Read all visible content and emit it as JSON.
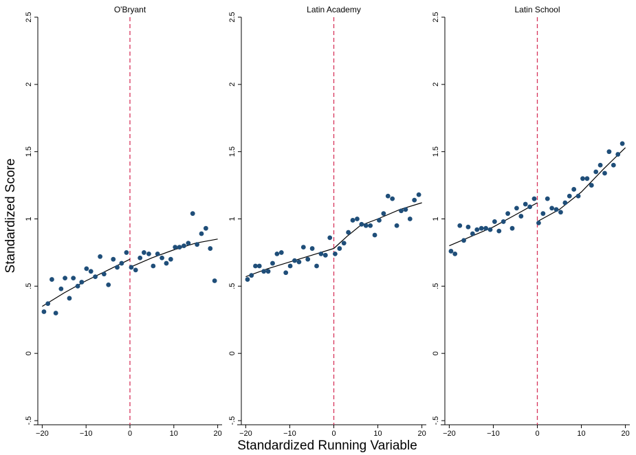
{
  "figure": {
    "ylabel": "Standardized Score",
    "xlabel": "Standardized Running Variable",
    "colors": {
      "points": "#1f4e79",
      "line": "#000000",
      "cutoff": "#d6335a"
    }
  },
  "chart_data": [
    {
      "type": "scatter",
      "title": "O'Bryant",
      "xlim": [
        -21,
        21
      ],
      "ylim": [
        -0.5,
        2.5
      ],
      "xticks": [
        "-20",
        "-10",
        "0",
        "10",
        "20"
      ],
      "yticks": [
        "-.5",
        "0",
        ".5",
        "1",
        "1.5",
        "2",
        "2.5"
      ],
      "cutoff": 0,
      "points": [
        [
          -19.6,
          0.31
        ],
        [
          -18.7,
          0.37
        ],
        [
          -17.8,
          0.55
        ],
        [
          -16.9,
          0.3
        ],
        [
          -15.7,
          0.48
        ],
        [
          -14.8,
          0.56
        ],
        [
          -13.8,
          0.41
        ],
        [
          -12.9,
          0.56
        ],
        [
          -11.9,
          0.5
        ],
        [
          -11.0,
          0.53
        ],
        [
          -9.9,
          0.63
        ],
        [
          -8.9,
          0.61
        ],
        [
          -7.9,
          0.57
        ],
        [
          -6.8,
          0.72
        ],
        [
          -5.9,
          0.59
        ],
        [
          -4.9,
          0.51
        ],
        [
          -3.8,
          0.7
        ],
        [
          -2.9,
          0.64
        ],
        [
          -1.9,
          0.67
        ],
        [
          -0.8,
          0.75
        ],
        [
          0.3,
          0.64
        ],
        [
          1.3,
          0.62
        ],
        [
          2.3,
          0.71
        ],
        [
          3.2,
          0.75
        ],
        [
          4.3,
          0.74
        ],
        [
          5.3,
          0.65
        ],
        [
          6.3,
          0.74
        ],
        [
          7.3,
          0.71
        ],
        [
          8.3,
          0.67
        ],
        [
          9.3,
          0.7
        ],
        [
          10.3,
          0.79
        ],
        [
          11.3,
          0.79
        ],
        [
          12.3,
          0.8
        ],
        [
          13.3,
          0.82
        ],
        [
          14.3,
          1.04
        ],
        [
          15.3,
          0.81
        ],
        [
          16.3,
          0.89
        ],
        [
          17.3,
          0.93
        ],
        [
          18.3,
          0.78
        ],
        [
          19.3,
          0.54
        ]
      ],
      "fit_left": [
        [
          -20,
          0.35
        ],
        [
          -15,
          0.45
        ],
        [
          -10,
          0.54
        ],
        [
          -5,
          0.62
        ],
        [
          0,
          0.7
        ]
      ],
      "fit_right": [
        [
          0,
          0.64
        ],
        [
          5,
          0.71
        ],
        [
          10,
          0.77
        ],
        [
          15,
          0.82
        ],
        [
          20,
          0.85
        ]
      ]
    },
    {
      "type": "scatter",
      "title": "Latin Academy",
      "xlim": [
        -21,
        21
      ],
      "ylim": [
        -0.5,
        2.5
      ],
      "xticks": [
        "-20",
        "-10",
        "0",
        "10",
        "20"
      ],
      "yticks": [
        "-.5",
        "0",
        ".5",
        "1",
        "1.5",
        "2",
        "2.5"
      ],
      "cutoff": 0,
      "points": [
        [
          -19.6,
          0.55
        ],
        [
          -18.7,
          0.58
        ],
        [
          -17.8,
          0.65
        ],
        [
          -16.9,
          0.65
        ],
        [
          -15.9,
          0.61
        ],
        [
          -14.9,
          0.61
        ],
        [
          -13.9,
          0.67
        ],
        [
          -12.9,
          0.74
        ],
        [
          -11.9,
          0.75
        ],
        [
          -10.9,
          0.6
        ],
        [
          -9.9,
          0.65
        ],
        [
          -8.9,
          0.69
        ],
        [
          -7.9,
          0.68
        ],
        [
          -6.9,
          0.79
        ],
        [
          -5.9,
          0.7
        ],
        [
          -4.9,
          0.78
        ],
        [
          -3.9,
          0.65
        ],
        [
          -2.9,
          0.74
        ],
        [
          -1.9,
          0.73
        ],
        [
          -0.9,
          0.86
        ],
        [
          0.3,
          0.74
        ],
        [
          1.3,
          0.78
        ],
        [
          2.3,
          0.82
        ],
        [
          3.3,
          0.9
        ],
        [
          4.3,
          0.99
        ],
        [
          5.3,
          1.0
        ],
        [
          6.3,
          0.96
        ],
        [
          7.3,
          0.95
        ],
        [
          8.3,
          0.95
        ],
        [
          9.3,
          0.88
        ],
        [
          10.3,
          0.99
        ],
        [
          11.3,
          1.04
        ],
        [
          12.3,
          1.17
        ],
        [
          13.3,
          1.15
        ],
        [
          14.3,
          0.95
        ],
        [
          15.3,
          1.06
        ],
        [
          16.3,
          1.07
        ],
        [
          17.3,
          1.0
        ],
        [
          18.3,
          1.14
        ],
        [
          19.3,
          1.18
        ]
      ],
      "fit_left": [
        [
          -20,
          0.57
        ],
        [
          -15,
          0.63
        ],
        [
          -10,
          0.68
        ],
        [
          -5,
          0.73
        ],
        [
          0,
          0.78
        ]
      ],
      "fit_right": [
        [
          0,
          0.78
        ],
        [
          3,
          0.87
        ],
        [
          6,
          0.95
        ],
        [
          10,
          1.0
        ],
        [
          15,
          1.07
        ],
        [
          20,
          1.12
        ]
      ]
    },
    {
      "type": "scatter",
      "title": "Latin School",
      "xlim": [
        -21,
        21
      ],
      "ylim": [
        -0.5,
        2.5
      ],
      "xticks": [
        "-20",
        "-10",
        "0",
        "10",
        "20"
      ],
      "yticks": [
        "-.5",
        "0",
        ".5",
        "1",
        "1.5",
        "2",
        "2.5"
      ],
      "cutoff": 0,
      "points": [
        [
          -19.6,
          0.76
        ],
        [
          -18.7,
          0.74
        ],
        [
          -17.6,
          0.95
        ],
        [
          -16.7,
          0.84
        ],
        [
          -15.7,
          0.94
        ],
        [
          -14.7,
          0.89
        ],
        [
          -13.7,
          0.92
        ],
        [
          -12.7,
          0.93
        ],
        [
          -11.7,
          0.93
        ],
        [
          -10.7,
          0.92
        ],
        [
          -9.7,
          0.98
        ],
        [
          -8.7,
          0.91
        ],
        [
          -7.7,
          0.98
        ],
        [
          -6.7,
          1.04
        ],
        [
          -5.7,
          0.93
        ],
        [
          -4.7,
          1.08
        ],
        [
          -3.7,
          1.02
        ],
        [
          -2.7,
          1.11
        ],
        [
          -1.7,
          1.09
        ],
        [
          -0.7,
          1.15
        ],
        [
          0.3,
          0.97
        ],
        [
          1.3,
          1.04
        ],
        [
          2.3,
          1.15
        ],
        [
          3.3,
          1.08
        ],
        [
          4.3,
          1.07
        ],
        [
          5.3,
          1.05
        ],
        [
          6.3,
          1.12
        ],
        [
          7.3,
          1.17
        ],
        [
          8.3,
          1.22
        ],
        [
          9.3,
          1.17
        ],
        [
          10.3,
          1.3
        ],
        [
          11.3,
          1.3
        ],
        [
          12.3,
          1.25
        ],
        [
          13.3,
          1.35
        ],
        [
          14.3,
          1.4
        ],
        [
          15.3,
          1.34
        ],
        [
          16.3,
          1.5
        ],
        [
          17.3,
          1.4
        ],
        [
          18.3,
          1.48
        ],
        [
          19.3,
          1.56
        ]
      ],
      "fit_left": [
        [
          -20,
          0.8
        ],
        [
          -15,
          0.87
        ],
        [
          -10,
          0.94
        ],
        [
          -5,
          1.03
        ],
        [
          0,
          1.12
        ]
      ],
      "fit_right": [
        [
          0,
          0.98
        ],
        [
          5,
          1.07
        ],
        [
          10,
          1.2
        ],
        [
          15,
          1.37
        ],
        [
          20,
          1.53
        ]
      ]
    }
  ]
}
